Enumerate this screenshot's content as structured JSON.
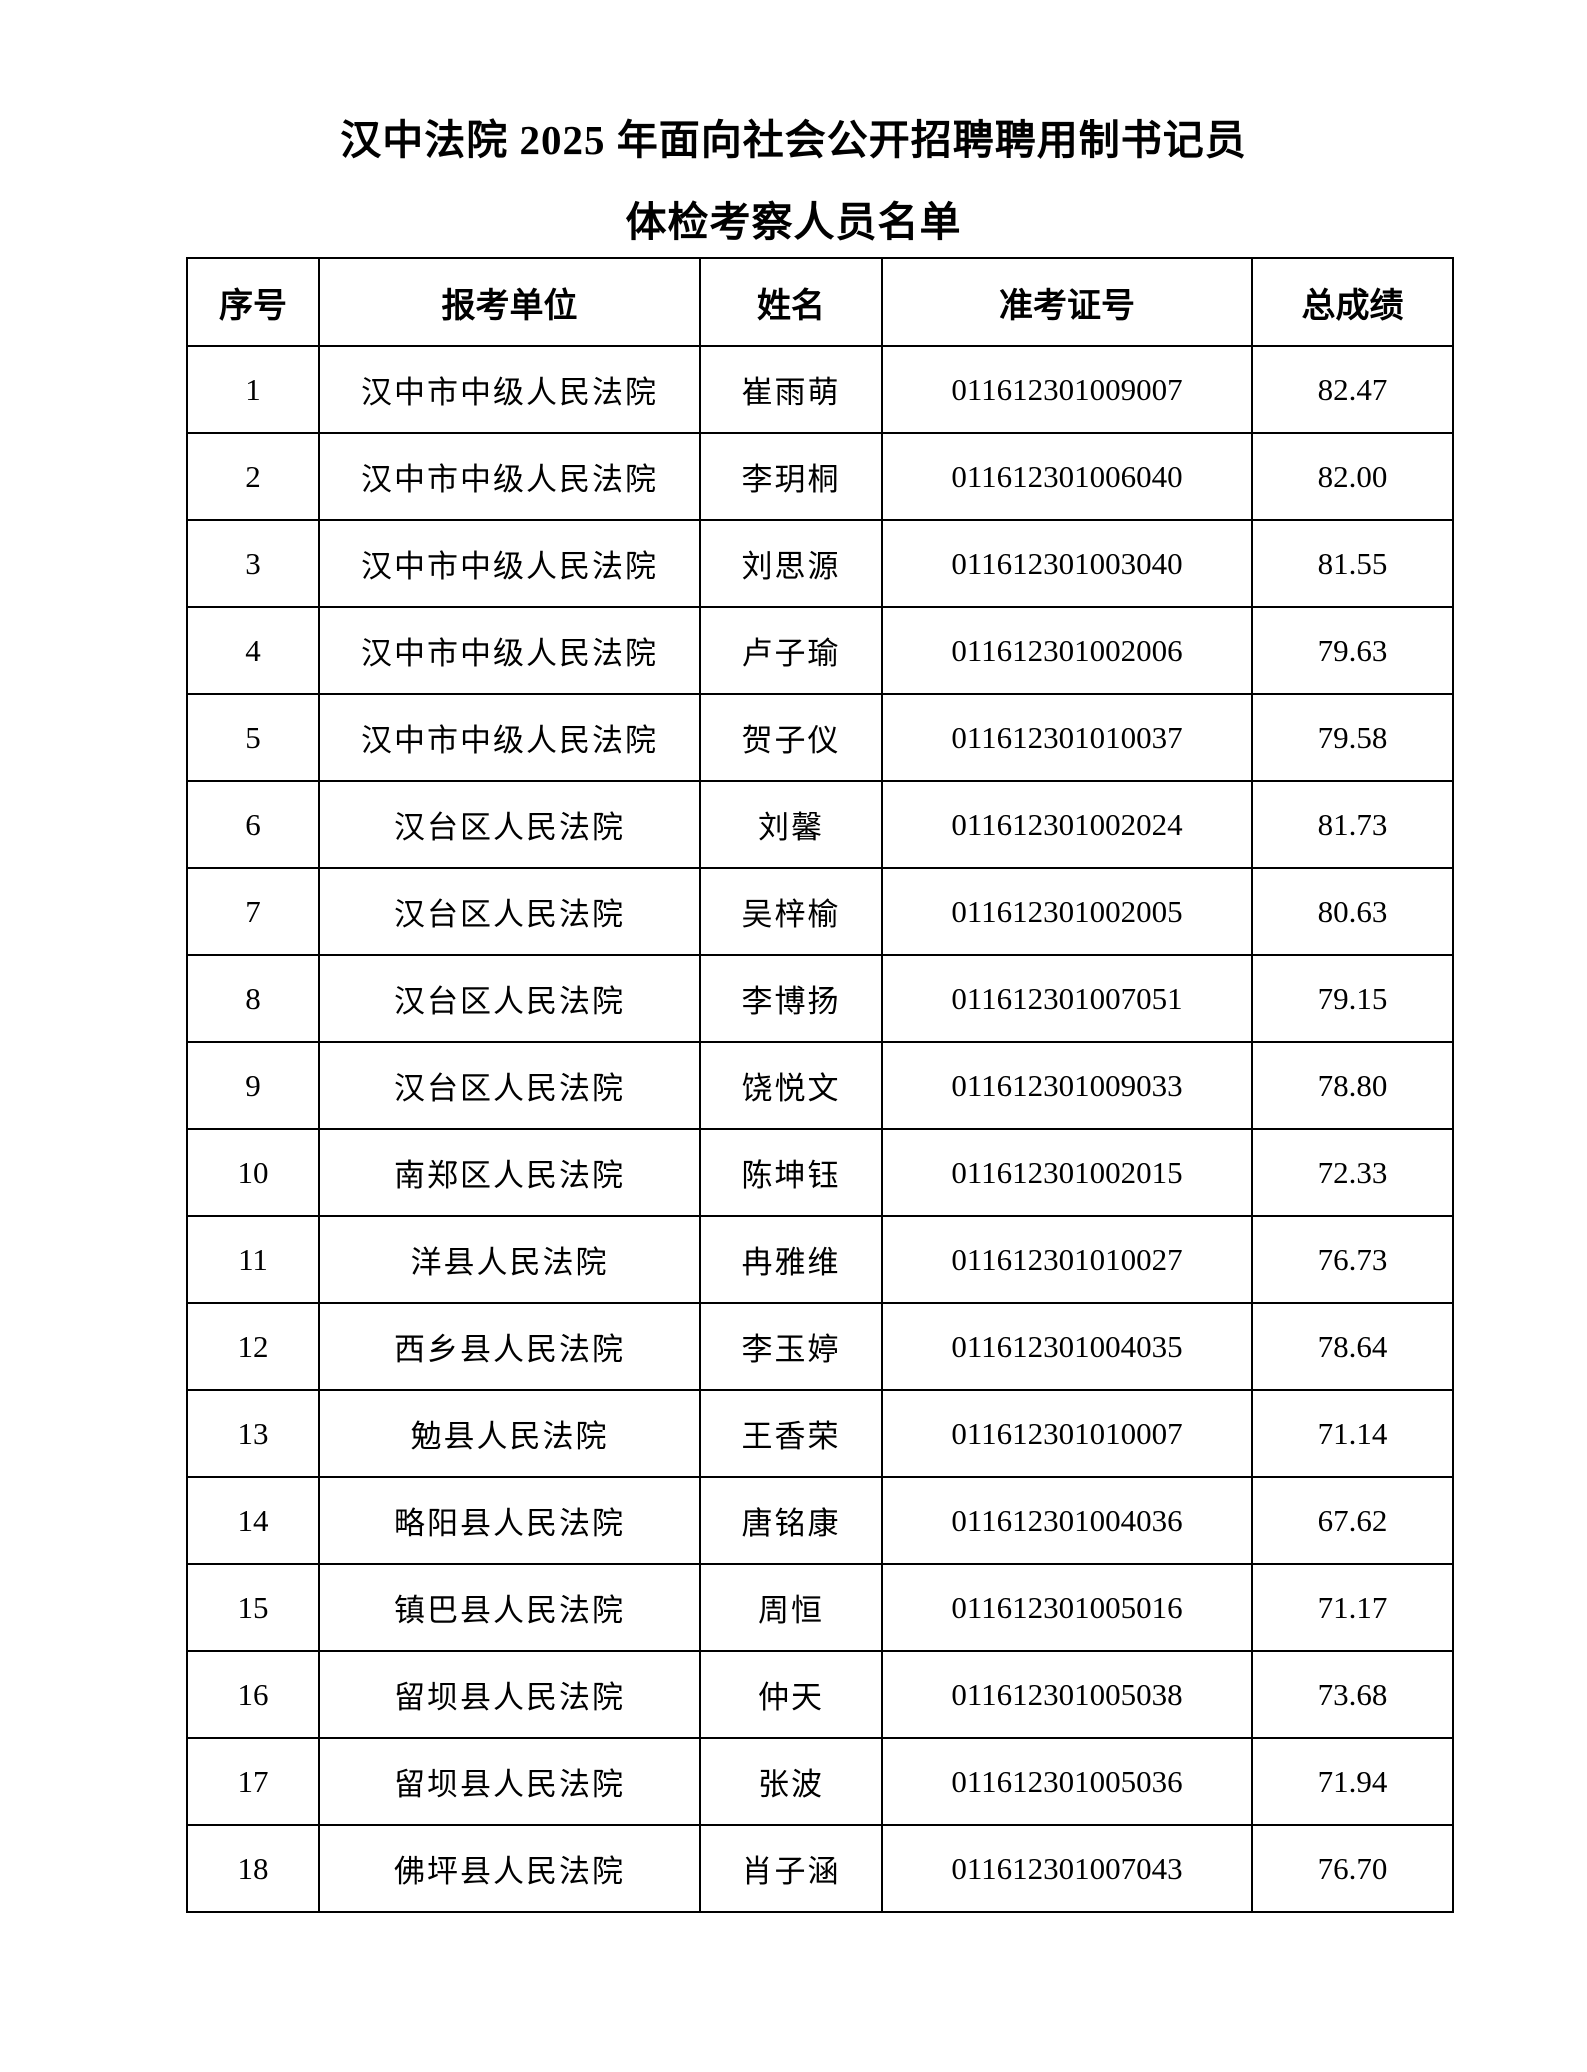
{
  "page": {
    "title_line1": "汉中法院 2025 年面向社会公开招聘聘用制书记员",
    "title_line2": "体检考察人员名单"
  },
  "table": {
    "columns": [
      "序号",
      "报考单位",
      "姓名",
      "准考证号",
      "总成绩"
    ],
    "rows": [
      [
        "1",
        "汉中市中级人民法院",
        "崔雨萌",
        "011612301009007",
        "82.47"
      ],
      [
        "2",
        "汉中市中级人民法院",
        "李玥桐",
        "011612301006040",
        "82.00"
      ],
      [
        "3",
        "汉中市中级人民法院",
        "刘思源",
        "011612301003040",
        "81.55"
      ],
      [
        "4",
        "汉中市中级人民法院",
        "卢子瑜",
        "011612301002006",
        "79.63"
      ],
      [
        "5",
        "汉中市中级人民法院",
        "贺子仪",
        "011612301010037",
        "79.58"
      ],
      [
        "6",
        "汉台区人民法院",
        "刘馨",
        "011612301002024",
        "81.73"
      ],
      [
        "7",
        "汉台区人民法院",
        "吴梓榆",
        "011612301002005",
        "80.63"
      ],
      [
        "8",
        "汉台区人民法院",
        "李博扬",
        "011612301007051",
        "79.15"
      ],
      [
        "9",
        "汉台区人民法院",
        "饶悦文",
        "011612301009033",
        "78.80"
      ],
      [
        "10",
        "南郑区人民法院",
        "陈坤钰",
        "011612301002015",
        "72.33"
      ],
      [
        "11",
        "洋县人民法院",
        "冉雅维",
        "011612301010027",
        "76.73"
      ],
      [
        "12",
        "西乡县人民法院",
        "李玉婷",
        "011612301004035",
        "78.64"
      ],
      [
        "13",
        "勉县人民法院",
        "王香荣",
        "011612301010007",
        "71.14"
      ],
      [
        "14",
        "略阳县人民法院",
        "唐铭康",
        "011612301004036",
        "67.62"
      ],
      [
        "15",
        "镇巴县人民法院",
        "周恒",
        "011612301005016",
        "71.17"
      ],
      [
        "16",
        "留坝县人民法院",
        "仲天",
        "011612301005038",
        "73.68"
      ],
      [
        "17",
        "留坝县人民法院",
        "张波",
        "011612301005036",
        "71.94"
      ],
      [
        "18",
        "佛坪县人民法院",
        "肖子涵",
        "011612301007043",
        "76.70"
      ]
    ]
  }
}
